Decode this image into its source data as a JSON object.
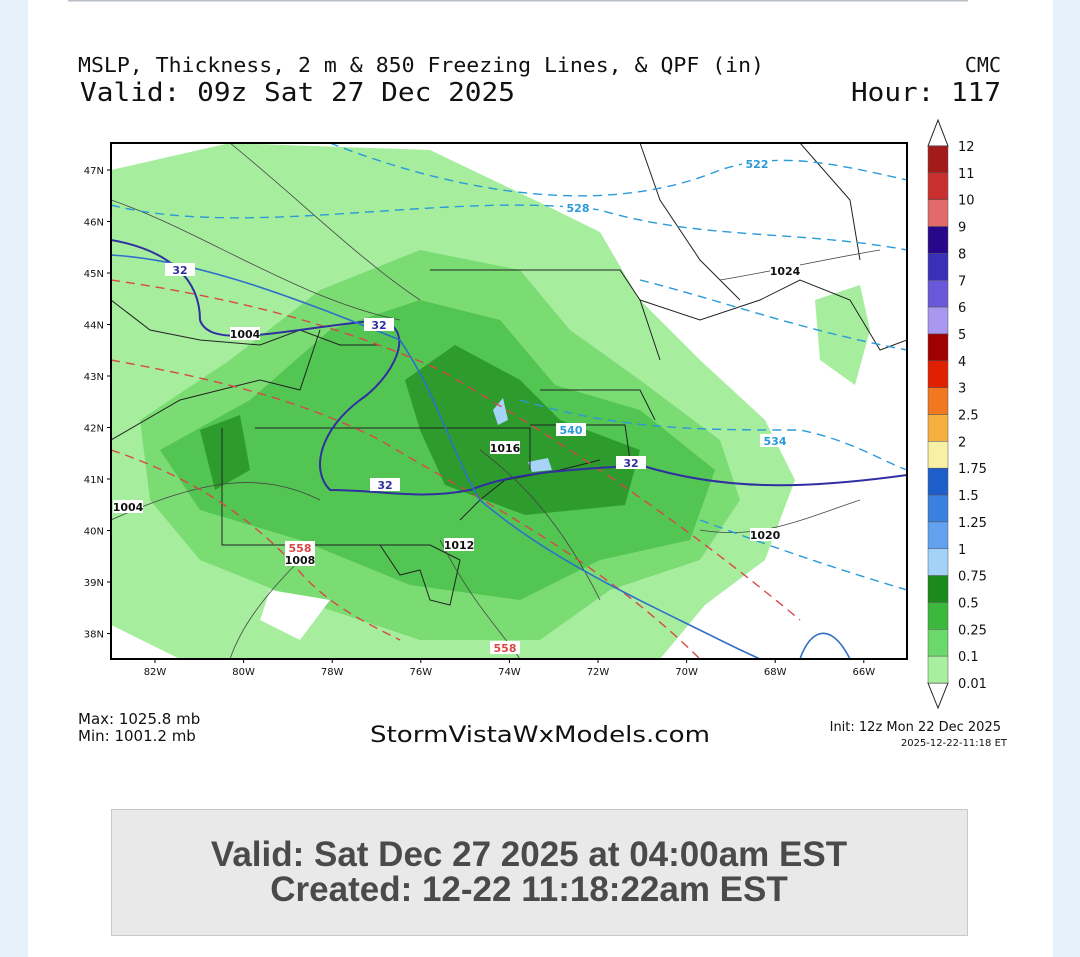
{
  "header": {
    "title": "MSLP, Thickness, 2 m & 850 Freezing Lines, & QPF (in)",
    "model": "CMC",
    "valid": "Valid: 09z Sat 27 Dec 2025",
    "hour": "Hour: 117"
  },
  "map": {
    "lat_labels": [
      "47N",
      "46N",
      "45N",
      "44N",
      "43N",
      "42N",
      "41N",
      "40N",
      "39N",
      "38N"
    ],
    "lon_labels": [
      "82W",
      "80W",
      "78W",
      "76W",
      "74W",
      "72W",
      "70W",
      "68W",
      "66W"
    ],
    "contour_labels": [
      "32",
      "1004",
      "32",
      "1016",
      "540",
      "32",
      "32",
      "1004",
      "1008",
      "558",
      "1012",
      "558",
      "1020",
      "1024",
      "528",
      "522",
      "534"
    ]
  },
  "colorbar": {
    "labels": [
      "12",
      "11",
      "10",
      "9",
      "8",
      "7",
      "6",
      "5",
      "4",
      "3",
      "2.5",
      "2",
      "1.75",
      "1.5",
      "1.25",
      "1",
      "0.75",
      "0.5",
      "0.25",
      "0.1",
      "0.01"
    ]
  },
  "footer": {
    "max": "Max: 1025.8 mb",
    "min": "Min: 1001.2 mb",
    "site": "StormVistaWxModels.com",
    "init": "Init: 12z Mon 22 Dec 2025",
    "timestamp": "2025-12-22-11:18 ET"
  },
  "caption": {
    "valid": "Valid: Sat Dec 27 2025 at 04:00am EST",
    "created": "Created: 12-22 11:18:22am EST"
  }
}
